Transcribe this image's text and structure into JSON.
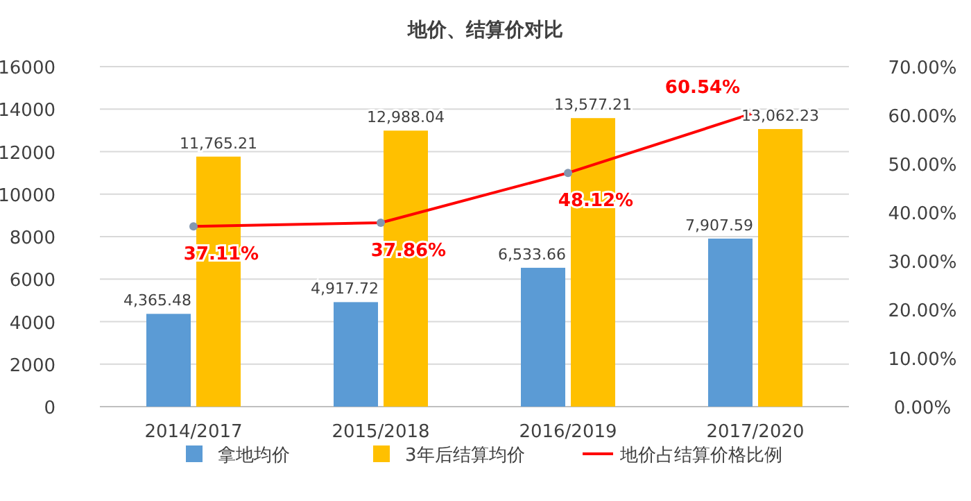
{
  "chart_data": {
    "type": "bar",
    "title": "地价、结算价对比",
    "categories": [
      "2014/2017",
      "2015/2018",
      "2016/2019",
      "2017/2020"
    ],
    "series": [
      {
        "name": "拿地均价",
        "color": "#5b9bd5",
        "values": [
          4365.48,
          4917.72,
          6533.66,
          7907.59
        ],
        "value_labels": [
          "4,365.48",
          "4,917.72",
          "6,533.66",
          "7,907.59"
        ]
      },
      {
        "name": "3年后结算均价",
        "color": "#ffc000",
        "values": [
          11765.21,
          12988.04,
          13577.21,
          13062.23
        ],
        "value_labels": [
          "11,765.21",
          "12,988.04",
          "13,577.21",
          "13,062.23"
        ]
      },
      {
        "name": "地价占结算价格比例",
        "type": "line",
        "axis": "y2",
        "color": "#ff0000",
        "marker": "circle",
        "values": [
          37.11,
          37.86,
          48.12,
          60.54
        ],
        "value_labels": [
          "37.11%",
          "37.86%",
          "48.12%",
          "60.54%"
        ]
      }
    ],
    "ylim": [
      0,
      16000
    ],
    "yticks": [
      0,
      2000,
      4000,
      6000,
      8000,
      10000,
      12000,
      14000,
      16000
    ],
    "y2lim": [
      0,
      70
    ],
    "y2ticks": [
      {
        "value": 0,
        "label": "0.00%"
      },
      {
        "value": 10,
        "label": "10.00%"
      },
      {
        "value": 20,
        "label": "20.00%"
      },
      {
        "value": 30,
        "label": "30.00%"
      },
      {
        "value": 40,
        "label": "40.00%"
      },
      {
        "value": 50,
        "label": "50.00%"
      },
      {
        "value": 60,
        "label": "60.00%"
      },
      {
        "value": 70,
        "label": "70.00%"
      }
    ],
    "grid": "y",
    "legend": "bottom"
  }
}
